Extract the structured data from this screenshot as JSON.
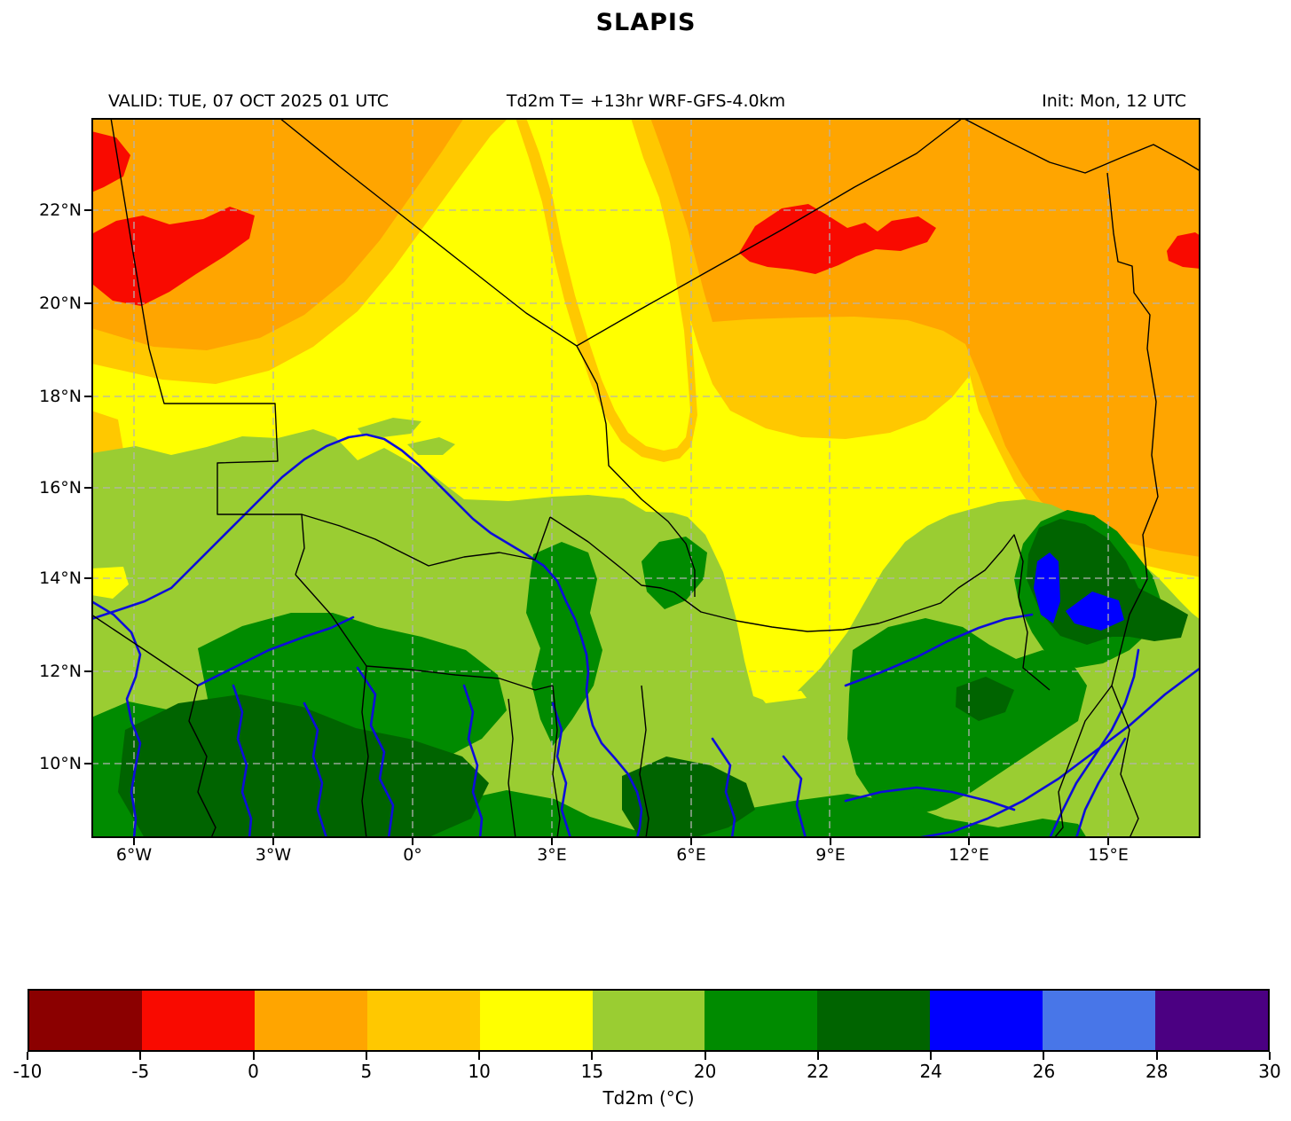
{
  "title": "SLAPIS",
  "header": {
    "valid": "VALID: TUE, 07 OCT 2025 01 UTC",
    "model": "Td2m T= +13hr WRF-GFS-4.0km",
    "init": "Init: Mon, 12 UTC"
  },
  "map": {
    "y_tick_labels": [
      "22°N",
      "20°N",
      "18°N",
      "16°N",
      "14°N",
      "12°N",
      "10°N"
    ],
    "x_tick_labels": [
      "6°W",
      "3°W",
      "0°",
      "3°E",
      "6°E",
      "9°E",
      "12°E",
      "15°E"
    ]
  },
  "colorbar": {
    "label": "Td2m (°C)",
    "tick_labels": [
      "-10",
      "-5",
      "0",
      "5",
      "10",
      "15",
      "20",
      "22",
      "24",
      "26",
      "28",
      "30"
    ],
    "colors": [
      "#8B0000",
      "#F90A00",
      "#FFA500",
      "#FFC800",
      "#FFFF00",
      "#9ACD32",
      "#008B00",
      "#006400",
      "#0000FF",
      "#4876E8",
      "#4B0082"
    ]
  },
  "palette": {
    "darkred": "#8B0000",
    "red": "#F90A00",
    "orange": "#FFA500",
    "gold": "#FFC800",
    "yellow": "#FFFF00",
    "ygreen": "#9ACD32",
    "green": "#008B00",
    "dgreen": "#006400",
    "blue": "#0000FF",
    "cornflower": "#4876E8",
    "purple": "#4B0082",
    "river": "#0D0DD9",
    "border": "#000000",
    "grid": "#b3b3b3"
  },
  "chart_data": {
    "type": "heatmap",
    "title": "SLAPIS",
    "variable": "Td2m (°C)",
    "valid_time": "TUE, 07 OCT 2025 01 UTC",
    "forecast": "T= +13hr",
    "model": "WRF-GFS-4.0km",
    "init_time": "Mon, 12 UTC",
    "lon_range": [
      -6.9,
      17.0
    ],
    "lat_range": [
      8.4,
      24.0
    ],
    "x_ticks_deg": [
      -6,
      -3,
      0,
      3,
      6,
      9,
      12,
      15
    ],
    "y_ticks_deg": [
      22,
      20,
      18,
      16,
      14,
      12,
      10
    ],
    "grid": "dashed",
    "colorbar_levels": [
      -10,
      -5,
      0,
      5,
      10,
      15,
      20,
      22,
      24,
      26,
      28,
      30
    ],
    "colorbar_spacing": "uniform",
    "colorbar_colors": [
      "#8B0000",
      "#F90A00",
      "#FFA500",
      "#FFC800",
      "#FFFF00",
      "#9ACD32",
      "#008B00",
      "#006400",
      "#0000FF",
      "#4876E8",
      "#4B0082"
    ],
    "field_regions": [
      {
        "area": "far northwest (6°W-4°W, 20°N-22.5°N)",
        "td2m_c": [
          -5,
          0
        ]
      },
      {
        "area": "northern Sahara band (north of ~19°N)",
        "td2m_c": [
          0,
          5
        ]
      },
      {
        "area": "red patch near Air (7°E-9.5°E, ~21°N)",
        "td2m_c": [
          -5,
          0
        ]
      },
      {
        "area": "red patch at east edge (~16.5°E, ~21°N)",
        "td2m_c": [
          -5,
          0
        ]
      },
      {
        "area": "transition band (~17°N-19°N) and patch (8°E-11°E, 18°N-19.5°N)",
        "td2m_c": [
          5,
          10
        ]
      },
      {
        "area": "central Sahel yellow zone (~13°N-18°N west, ~13°N-16°N east)",
        "td2m_c": [
          10,
          15
        ]
      },
      {
        "area": "Sudanian zone (~11°N-16°N)",
        "td2m_c": [
          15,
          20
        ]
      },
      {
        "area": "southern zone (south of ~11.5°N, patchy)",
        "td2m_c": [
          20,
          22
        ]
      },
      {
        "area": "far south and Lake Chad ring (13°E-15.5°E, 12.5°N-14.5°N)",
        "td2m_c": [
          22,
          24
        ]
      },
      {
        "area": "Lake Chad core (~13.5°E-14.5°E, ~13°N-13.8°N)",
        "td2m_c": [
          24,
          26
        ]
      }
    ],
    "overlays": [
      "national borders (black)",
      "rivers (blue)"
    ]
  }
}
